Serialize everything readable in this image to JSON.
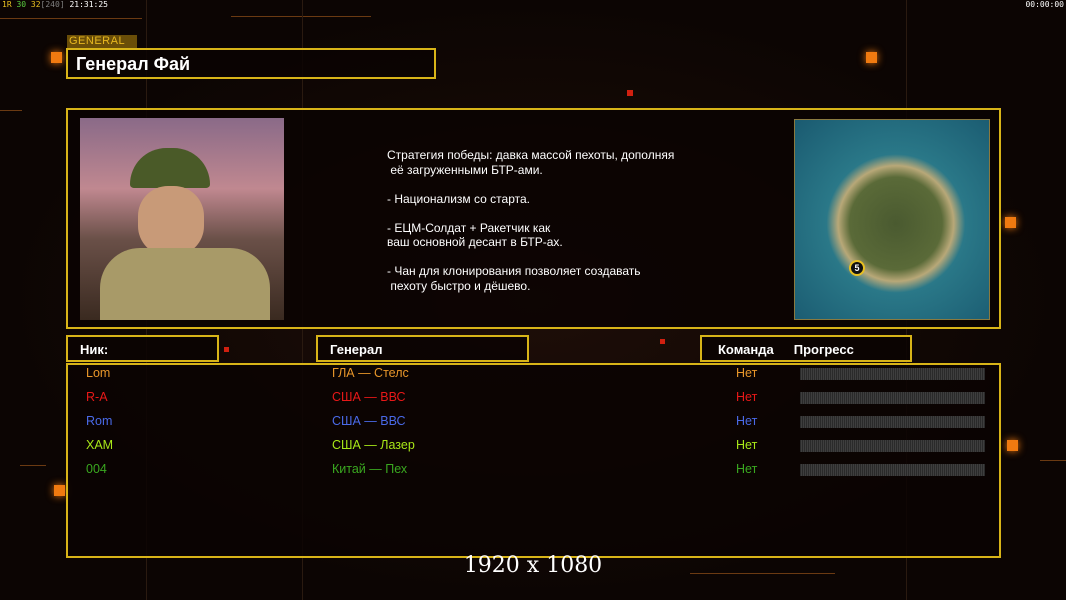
{
  "hud": {
    "left_parts": [
      {
        "text": "1R",
        "color": "#e8c020"
      },
      {
        "text": " 30",
        "color": "#5ad040"
      },
      {
        "text": " 32",
        "color": "#e8c020"
      },
      {
        "text": "[240]",
        "color": "#808080"
      },
      {
        "text": " 21:31:25",
        "color": "#ffffff"
      }
    ],
    "right": "00:00:00"
  },
  "section_tag": "GENERAL",
  "general_name": "Генерал Фай",
  "strategy": "Стратегия победы: давка массой пехоты, дополняя\n её загруженными БТР-ами.\n\n- Национализм со старта.\n\n- ЕЦМ-Солдат + Ракетчик как\nваш основной десант в БТР-ах.\n\n- Чан для клонирования позволяет создавать\n пехоту быстро и дёшево.",
  "headers": {
    "nick": "Ник:",
    "general": "Генерал",
    "team": "Команда",
    "progress": "Прогресс"
  },
  "players": [
    {
      "nick": "Lom",
      "general": "ГЛА — Стелс",
      "team": "Нет",
      "color": "#e8962a",
      "progress": 0
    },
    {
      "nick": "R-A",
      "general": "США — ВВС",
      "team": "Нет",
      "color": "#e81818",
      "progress": 0
    },
    {
      "nick": "Rom",
      "general": "США — ВВС",
      "team": "Нет",
      "color": "#4a6ae8",
      "progress": 0
    },
    {
      "nick": "XAM",
      "general": "США — Лазер",
      "team": "Нет",
      "color": "#a8e818",
      "progress": 0
    },
    {
      "nick": "004",
      "general": "Китай — Пех",
      "team": "Нет",
      "color": "#3aa820",
      "progress": 0
    }
  ],
  "map_badge": "5",
  "resolution": "1920 x 1080"
}
